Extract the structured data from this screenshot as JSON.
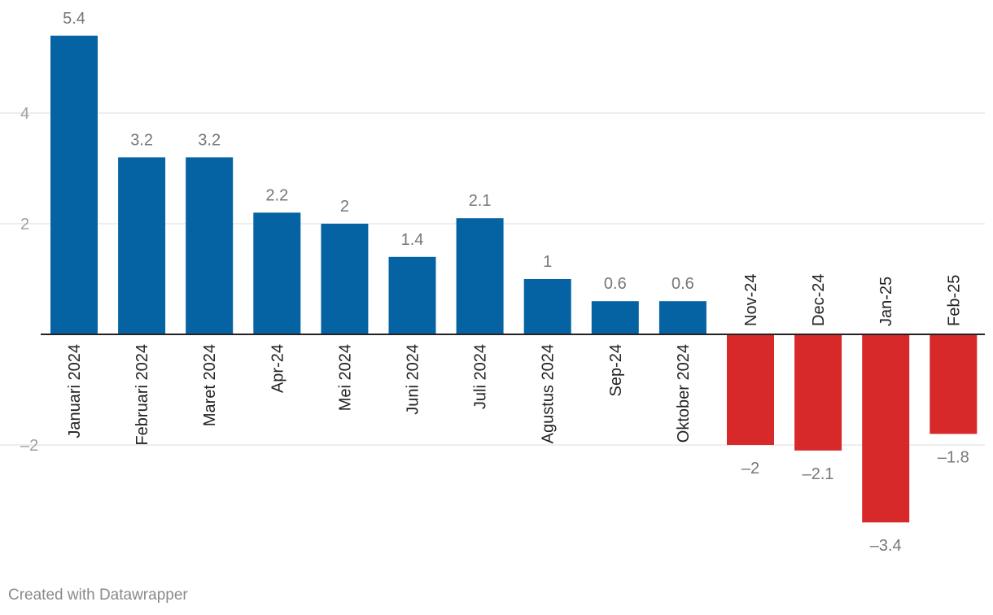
{
  "chart_data": {
    "type": "bar",
    "categories": [
      "Januari 2024",
      "Februari 2024",
      "Maret 2024",
      "Apr-24",
      "Mei 2024",
      "Juni 2024",
      "Juli 2024",
      "Agustus 2024",
      "Sep-24",
      "Oktober 2024",
      "Nov-24",
      "Dec-24",
      "Jan-25",
      "Feb-25"
    ],
    "values": [
      5.4,
      3.2,
      3.2,
      2.2,
      2,
      1.4,
      2.1,
      1,
      0.6,
      0.6,
      -2,
      -2.1,
      -3.4,
      -1.8
    ],
    "value_labels": [
      "5.4",
      "3.2",
      "3.2",
      "2.2",
      "2",
      "1.4",
      "2.1",
      "1",
      "0.6",
      "0.6",
      "–2",
      "–2.1",
      "–3.4",
      "–1.8"
    ],
    "y_ticks": [
      4,
      2,
      -2
    ],
    "y_tick_labels": [
      "4",
      "2",
      "–2"
    ],
    "ylim": [
      -3.9,
      5.4
    ],
    "grid": true,
    "colors": {
      "positive": "#0563a3",
      "negative": "#d7282a",
      "grid": "#dddddd",
      "zero_line": "#222222"
    },
    "title": "",
    "xlabel": "",
    "ylabel": ""
  },
  "footer": {
    "credit": "Created with Datawrapper"
  }
}
